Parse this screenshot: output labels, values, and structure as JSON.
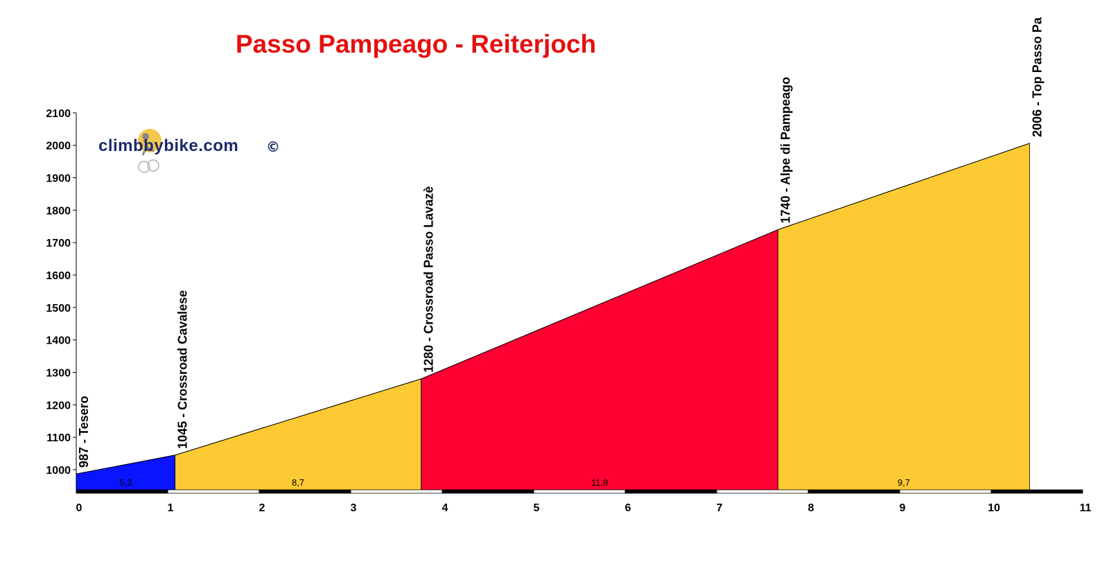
{
  "chart_data": {
    "type": "area",
    "title": "Passo Pampeago - Reiterjoch",
    "xlabel": "",
    "ylabel": "",
    "xlim": [
      0,
      11
    ],
    "ylim": [
      935,
      2100
    ],
    "x_ticks": [
      "0",
      "1",
      "2",
      "3",
      "4",
      "5",
      "6",
      "7",
      "8",
      "9",
      "10",
      "11"
    ],
    "y_ticks": [
      "1000",
      "1100",
      "1200",
      "1300",
      "1400",
      "1500",
      "1600",
      "1700",
      "1800",
      "1900",
      "2000",
      "2100"
    ],
    "y_tick_values": [
      1000,
      1100,
      1200,
      1300,
      1400,
      1500,
      1600,
      1700,
      1800,
      1900,
      2000,
      2100
    ],
    "profile": [
      {
        "km": 0,
        "elev": 987
      },
      {
        "km": 1.08,
        "elev": 1045
      },
      {
        "km": 3.77,
        "elev": 1280
      },
      {
        "km": 7.67,
        "elev": 1740
      },
      {
        "km": 10.42,
        "elev": 2006
      }
    ],
    "segments": [
      {
        "from_km": 0,
        "to_km": 1.08,
        "gradient_label": "5,3",
        "color": "#0a14ff"
      },
      {
        "from_km": 1.08,
        "to_km": 3.77,
        "gradient_label": "8,7",
        "color": "#fdca33"
      },
      {
        "from_km": 3.77,
        "to_km": 7.67,
        "gradient_label": "11,8",
        "color": "#ff0033"
      },
      {
        "from_km": 7.67,
        "to_km": 10.42,
        "gradient_label": "9,7",
        "color": "#fdca33"
      }
    ],
    "waypoints": [
      {
        "km": 0,
        "elev": 987,
        "label": "987 - Tesero"
      },
      {
        "km": 1.08,
        "elev": 1045,
        "label": "1045 - Crossroad Cavalese"
      },
      {
        "km": 3.77,
        "elev": 1280,
        "label": "1280 - Crossroad Passo Lavazè"
      },
      {
        "km": 7.67,
        "elev": 1740,
        "label": "1740 - Alpe di Pampeago"
      },
      {
        "km": 10.42,
        "elev": 2006,
        "label": "2006 - Top Passo Pa"
      }
    ]
  },
  "watermark": {
    "brand_text": "climbbybike.com",
    "copyright": "©",
    "brand_color": "#1b2a6b"
  },
  "colors": {
    "title": "#e41010",
    "outline": "#000000"
  }
}
